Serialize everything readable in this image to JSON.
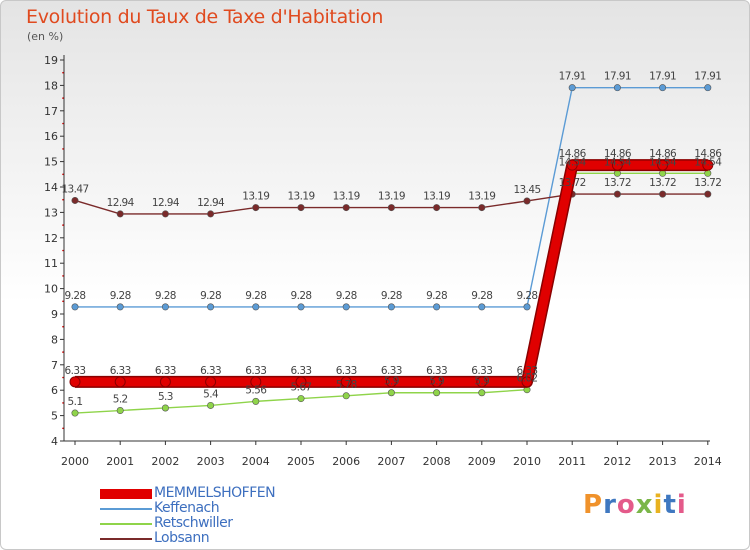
{
  "header": {
    "title": "Evolution du Taux de Taxe d'Habitation",
    "subtitle": "(en %)"
  },
  "logo": {
    "text": "Proxiti",
    "colors": [
      "#f0922b",
      "#3f78c0",
      "#e45a8a",
      "#7ab648",
      "#e8b220",
      "#3f78c0",
      "#e45a8a"
    ]
  },
  "chart_data": {
    "type": "line",
    "x": [
      2000,
      2001,
      2002,
      2003,
      2004,
      2005,
      2006,
      2007,
      2008,
      2009,
      2010,
      2011,
      2012,
      2013,
      2014
    ],
    "ylim": [
      4,
      19
    ],
    "yticks": [
      4,
      5,
      6,
      7,
      8,
      9,
      10,
      11,
      12,
      13,
      14,
      15,
      16,
      17,
      18,
      19
    ],
    "grid": false,
    "legend_position": "bottom-left",
    "series": [
      {
        "name": "MEMMELSHOFFEN",
        "color": "#e00000",
        "values": [
          6.33,
          6.33,
          6.33,
          6.33,
          6.33,
          6.33,
          6.33,
          6.33,
          6.33,
          6.33,
          6.33,
          14.86,
          14.86,
          14.86,
          14.86
        ],
        "labels": [
          "6.33",
          "6.33",
          "6.33",
          "6.33",
          "6.33",
          "6.33",
          "6.33",
          "6.33",
          "6.33",
          "6.33",
          "6.33",
          "14.86",
          "14.86",
          "14.86",
          "14.86"
        ]
      },
      {
        "name": "Keffenach",
        "color": "#5b9bd5",
        "values": [
          9.28,
          9.28,
          9.28,
          9.28,
          9.28,
          9.28,
          9.28,
          9.28,
          9.28,
          9.28,
          9.28,
          17.91,
          17.91,
          17.91,
          17.91
        ],
        "labels": [
          "9.28",
          "9.28",
          "9.28",
          "9.28",
          "9.28",
          "9.28",
          "9.28",
          "9.28",
          "9.28",
          "9.28",
          "9.28",
          "17.91",
          "17.91",
          "17.91",
          "17.91"
        ]
      },
      {
        "name": "Retschwiller",
        "color": "#8fd44a",
        "values": [
          5.1,
          5.2,
          5.3,
          5.4,
          5.56,
          5.67,
          5.78,
          5.9,
          5.9,
          5.9,
          6.02,
          14.54,
          14.54,
          14.54,
          14.54
        ],
        "labels": [
          "5.1",
          "5.2",
          "5.3",
          "5.4",
          "5.56",
          "5.67",
          "5.78",
          "5.9",
          "5.9",
          "5.9",
          "6.02",
          "14.54",
          "14.54",
          "14.54",
          "14.54"
        ]
      },
      {
        "name": "Lobsann",
        "color": "#7a2a2a",
        "values": [
          13.47,
          12.94,
          12.94,
          12.94,
          13.19,
          13.19,
          13.19,
          13.19,
          13.19,
          13.19,
          13.45,
          13.72,
          13.72,
          13.72,
          13.72
        ],
        "labels": [
          "13.47",
          "12.94",
          "12.94",
          "12.94",
          "13.19",
          "13.19",
          "13.19",
          "13.19",
          "13.19",
          "13.19",
          "13.45",
          "13.72",
          "13.72",
          "13.72",
          "13.72"
        ]
      }
    ]
  }
}
